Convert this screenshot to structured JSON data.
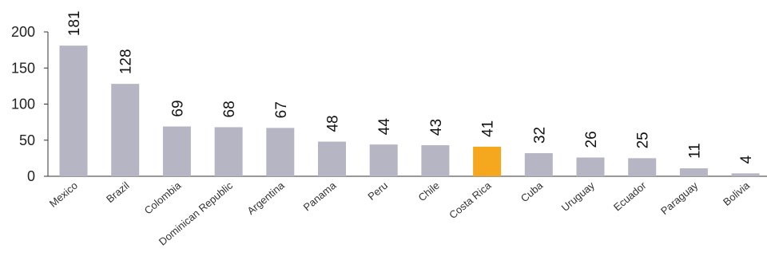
{
  "chart_data": {
    "type": "bar",
    "title": "",
    "xlabel": "",
    "ylabel": "",
    "ylim": [
      0,
      200
    ],
    "yticks": [
      0,
      50,
      100,
      150,
      200
    ],
    "grid": false,
    "categories": [
      "Mexico",
      "Brazil",
      "Colombia",
      "Dominican Republic",
      "Argentina",
      "Panama",
      "Peru",
      "Chile",
      "Costa Rica",
      "Cuba",
      "Uruguay",
      "Ecuador",
      "Paraguay",
      "Bolivia"
    ],
    "values": [
      181,
      128,
      69,
      68,
      67,
      48,
      44,
      43,
      41,
      32,
      26,
      25,
      11,
      4
    ],
    "highlight_category": "Costa Rica",
    "colors": {
      "bar": "#b5b5c3",
      "highlight": "#f5a81d",
      "axis": "#333333"
    }
  }
}
